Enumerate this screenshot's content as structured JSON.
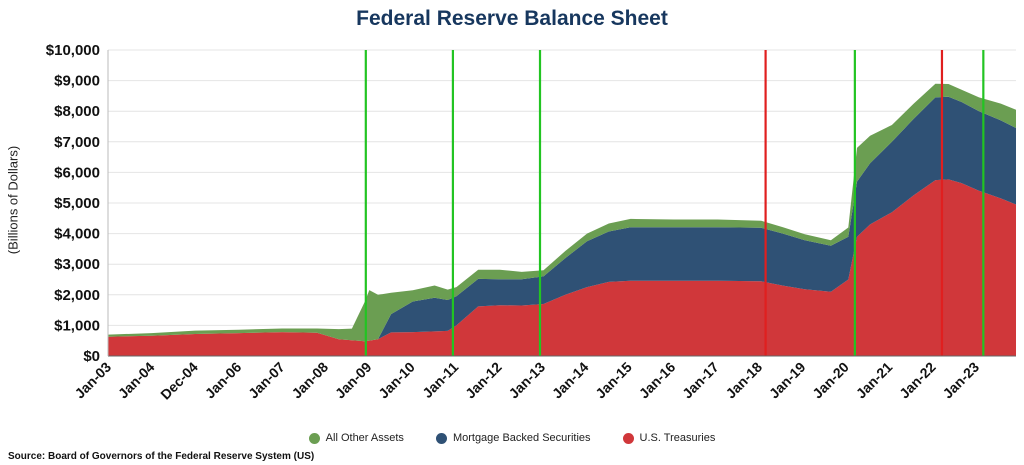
{
  "chart_data": {
    "type": "area",
    "title": "Federal Reserve Balance Sheet",
    "ylabel": "(Billions of Dollars)",
    "xlabel": "",
    "ylim": [
      0,
      10000
    ],
    "y_ticks": [
      "$0",
      "$1,000",
      "$2,000",
      "$3,000",
      "$4,000",
      "$5,000",
      "$6,000",
      "$7,000",
      "$8,000",
      "$9,000",
      "$10,000"
    ],
    "x_ticks": [
      "Jan-03",
      "Jan-04",
      "Dec-04",
      "Jan-06",
      "Jan-07",
      "Jan-08",
      "Jan-09",
      "Jan-10",
      "Jan-11",
      "Jan-12",
      "Jan-13",
      "Jan-14",
      "Jan-15",
      "Jan-16",
      "Jan-17",
      "Jan-18",
      "Jan-19",
      "Jan-20",
      "Jan-21",
      "Jan-22",
      "Jan-23"
    ],
    "x_range": [
      2003.0,
      2023.85
    ],
    "stacking": "stacked",
    "grid": true,
    "legend_position": "bottom",
    "series": [
      {
        "name": "U.S. Treasuries",
        "color": "#d0373a",
        "points": [
          [
            2003.0,
            630
          ],
          [
            2004.0,
            660
          ],
          [
            2005.0,
            720
          ],
          [
            2006.0,
            750
          ],
          [
            2007.0,
            780
          ],
          [
            2007.8,
            760
          ],
          [
            2008.3,
            550
          ],
          [
            2008.9,
            480
          ],
          [
            2009.2,
            550
          ],
          [
            2009.5,
            770
          ],
          [
            2010.0,
            780
          ],
          [
            2010.8,
            820
          ],
          [
            2011.0,
            1000
          ],
          [
            2011.5,
            1620
          ],
          [
            2012.0,
            1660
          ],
          [
            2012.5,
            1650
          ],
          [
            2013.0,
            1700
          ],
          [
            2013.5,
            2000
          ],
          [
            2014.0,
            2250
          ],
          [
            2014.5,
            2420
          ],
          [
            2015.0,
            2460
          ],
          [
            2016.0,
            2460
          ],
          [
            2017.0,
            2460
          ],
          [
            2018.0,
            2440
          ],
          [
            2018.5,
            2300
          ],
          [
            2019.0,
            2180
          ],
          [
            2019.6,
            2100
          ],
          [
            2020.0,
            2500
          ],
          [
            2020.2,
            3900
          ],
          [
            2020.5,
            4300
          ],
          [
            2021.0,
            4700
          ],
          [
            2021.5,
            5250
          ],
          [
            2022.0,
            5750
          ],
          [
            2022.3,
            5770
          ],
          [
            2022.6,
            5650
          ],
          [
            2023.0,
            5400
          ],
          [
            2023.5,
            5150
          ],
          [
            2023.85,
            4950
          ]
        ]
      },
      {
        "name": "Mortgage Backed Securities",
        "color": "#2f5175",
        "points": [
          [
            2003.0,
            0
          ],
          [
            2008.9,
            0
          ],
          [
            2009.2,
            0
          ],
          [
            2009.5,
            600
          ],
          [
            2010.0,
            1000
          ],
          [
            2010.5,
            1100
          ],
          [
            2011.0,
            950
          ],
          [
            2011.5,
            900
          ],
          [
            2012.0,
            850
          ],
          [
            2012.5,
            860
          ],
          [
            2013.0,
            900
          ],
          [
            2013.5,
            1200
          ],
          [
            2014.0,
            1500
          ],
          [
            2014.5,
            1650
          ],
          [
            2015.0,
            1750
          ],
          [
            2016.0,
            1750
          ],
          [
            2017.0,
            1750
          ],
          [
            2018.0,
            1750
          ],
          [
            2018.5,
            1700
          ],
          [
            2019.0,
            1600
          ],
          [
            2019.6,
            1500
          ],
          [
            2020.0,
            1400
          ],
          [
            2020.2,
            1800
          ],
          [
            2020.5,
            2000
          ],
          [
            2021.0,
            2300
          ],
          [
            2021.5,
            2500
          ],
          [
            2022.0,
            2700
          ],
          [
            2022.3,
            2700
          ],
          [
            2022.6,
            2650
          ],
          [
            2023.0,
            2600
          ],
          [
            2023.5,
            2550
          ],
          [
            2023.85,
            2500
          ]
        ]
      },
      {
        "name": "All Other Assets",
        "color": "#6b9e52",
        "points": [
          [
            2003.0,
            70
          ],
          [
            2004.0,
            90
          ],
          [
            2005.0,
            110
          ],
          [
            2006.0,
            110
          ],
          [
            2007.0,
            120
          ],
          [
            2007.8,
            140
          ],
          [
            2008.3,
            330
          ],
          [
            2008.6,
            380
          ],
          [
            2008.9,
            1300
          ],
          [
            2009.0,
            1650
          ],
          [
            2009.2,
            1450
          ],
          [
            2009.5,
            700
          ],
          [
            2010.0,
            370
          ],
          [
            2010.5,
            400
          ],
          [
            2011.0,
            300
          ],
          [
            2011.5,
            300
          ],
          [
            2012.0,
            310
          ],
          [
            2012.5,
            240
          ],
          [
            2013.0,
            200
          ],
          [
            2013.5,
            230
          ],
          [
            2014.0,
            250
          ],
          [
            2014.5,
            260
          ],
          [
            2015.0,
            270
          ],
          [
            2016.0,
            250
          ],
          [
            2017.0,
            250
          ],
          [
            2018.0,
            230
          ],
          [
            2018.5,
            210
          ],
          [
            2019.0,
            200
          ],
          [
            2019.6,
            180
          ],
          [
            2020.0,
            300
          ],
          [
            2020.2,
            1100
          ],
          [
            2020.5,
            900
          ],
          [
            2021.0,
            550
          ],
          [
            2021.5,
            500
          ],
          [
            2022.0,
            450
          ],
          [
            2022.3,
            420
          ],
          [
            2022.6,
            400
          ],
          [
            2023.0,
            450
          ],
          [
            2023.5,
            550
          ],
          [
            2023.85,
            600
          ]
        ]
      }
    ],
    "vertical_markers": [
      {
        "x": 2008.92,
        "color": "#22c422"
      },
      {
        "x": 2010.92,
        "color": "#22c422"
      },
      {
        "x": 2012.92,
        "color": "#22c422"
      },
      {
        "x": 2018.1,
        "color": "#e01f1f"
      },
      {
        "x": 2020.15,
        "color": "#22c422"
      },
      {
        "x": 2022.15,
        "color": "#e01f1f"
      },
      {
        "x": 2023.1,
        "color": "#22c422"
      }
    ]
  },
  "legend": [
    {
      "label": "All Other Assets",
      "color": "#6b9e52"
    },
    {
      "label": "Mortgage Backed Securities",
      "color": "#2f5175"
    },
    {
      "label": "U.S. Treasuries",
      "color": "#d0373a"
    }
  ],
  "source": "Source: Board of Governors of the Federal Reserve System (US)"
}
